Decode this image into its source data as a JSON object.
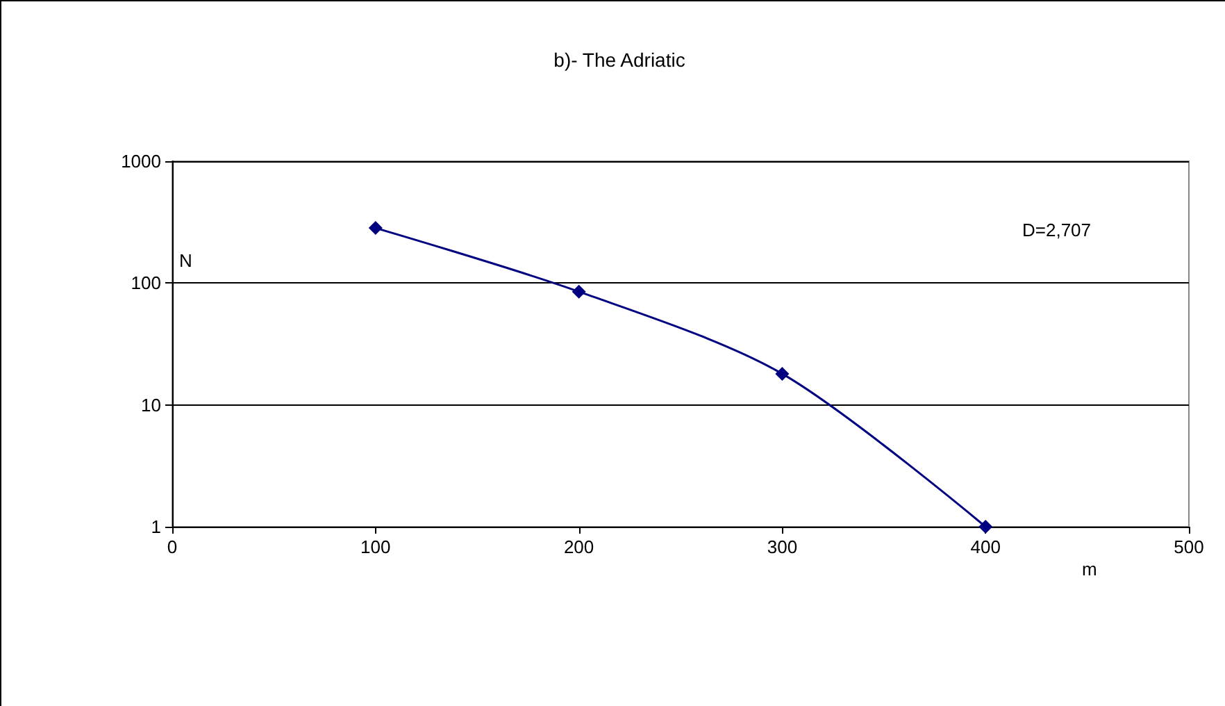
{
  "chart_data": {
    "type": "line",
    "title": "b)- The Adriatic",
    "xlabel": "m",
    "ylabel": "N",
    "annotations": [
      "D=2,707"
    ],
    "x": [
      100,
      200,
      300,
      400
    ],
    "series": [
      {
        "color": "#000080",
        "values": [
          283,
          85,
          18,
          1
        ]
      }
    ],
    "xlim": [
      0,
      500
    ],
    "xticks": [
      0,
      100,
      200,
      300,
      400,
      500
    ],
    "ylim": [
      1,
      1000
    ],
    "yticks": [
      1,
      10,
      100,
      1000
    ],
    "log": "y",
    "grid": "y",
    "marker": "diamond",
    "line_style": "solid"
  }
}
